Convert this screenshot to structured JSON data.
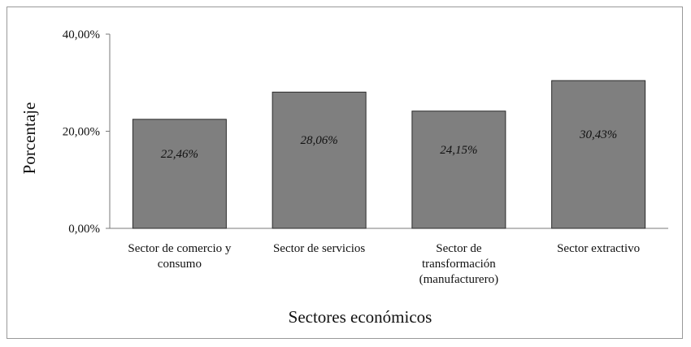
{
  "chart_data": {
    "type": "bar",
    "categories": [
      [
        "Sector de comercio y",
        "consumo"
      ],
      [
        "Sector de servicios"
      ],
      [
        "Sector de",
        "transformación",
        "(manufacturero)"
      ],
      [
        "Sector extractivo"
      ]
    ],
    "values": [
      22.46,
      28.06,
      24.15,
      30.43
    ],
    "data_labels": [
      "22,46%",
      "28,06%",
      "24,15%",
      "30,43%"
    ],
    "y_ticks": [
      {
        "value": 0,
        "label": "0,00%"
      },
      {
        "value": 20,
        "label": "20,00%"
      },
      {
        "value": 40,
        "label": "40,00%"
      }
    ],
    "ylim": [
      0,
      40
    ],
    "xlabel": "Sectores económicos",
    "ylabel": "Porcentaje",
    "grid": false,
    "legend": "none",
    "bar_color": "#7f7f7f",
    "bar_border_color": "#2b2b2b"
  }
}
